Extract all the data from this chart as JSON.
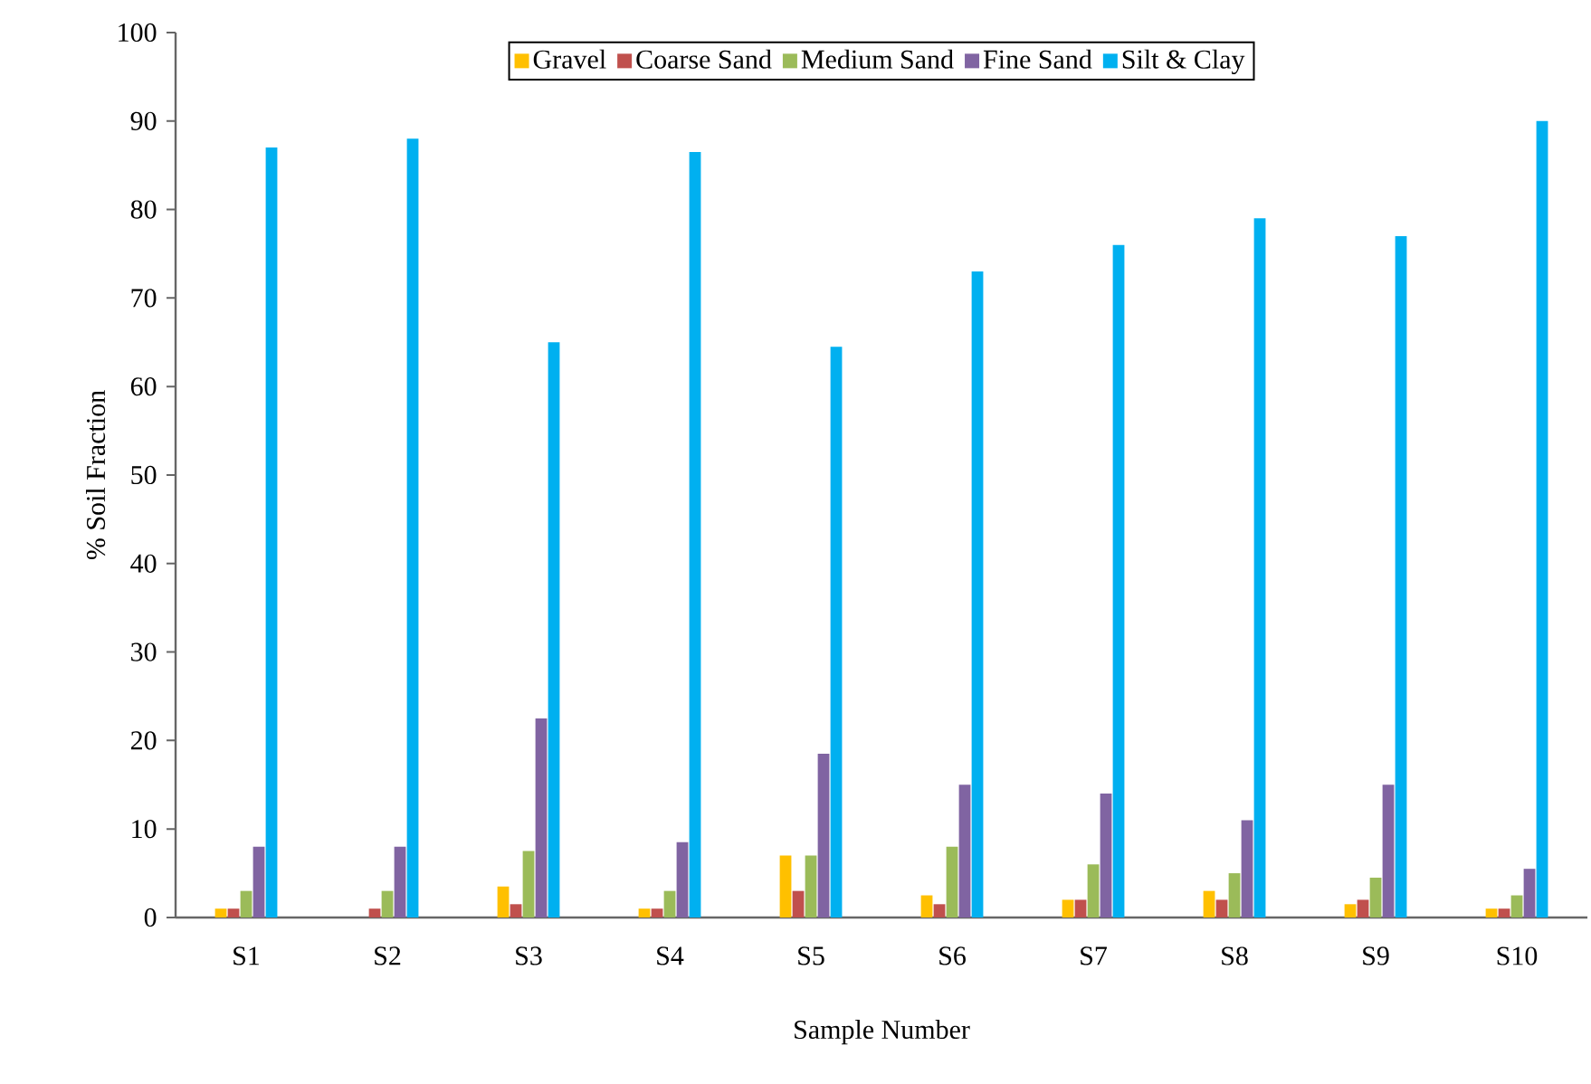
{
  "chart_data": {
    "type": "bar",
    "xlabel": "Sample Number",
    "ylabel": "% Soil Fraction",
    "categories": [
      "S1",
      "S2",
      "S3",
      "S4",
      "S5",
      "S6",
      "S7",
      "S8",
      "S9",
      "S10"
    ],
    "series": [
      {
        "name": "Gravel",
        "color": "#ffc000",
        "values": [
          1,
          0,
          3.5,
          1,
          7,
          2.5,
          2,
          3,
          1.5,
          1
        ]
      },
      {
        "name": "Coarse Sand",
        "color": "#c0504d",
        "values": [
          1,
          1,
          1.5,
          1,
          3,
          1.5,
          2,
          2,
          2,
          1
        ]
      },
      {
        "name": "Medium Sand",
        "color": "#9bbb59",
        "values": [
          3,
          3,
          7.5,
          3,
          7,
          8,
          6,
          5,
          4.5,
          2.5
        ]
      },
      {
        "name": "Fine Sand",
        "color": "#8064a2",
        "values": [
          8,
          8,
          22.5,
          8.5,
          18.5,
          15,
          14,
          11,
          15,
          5.5
        ]
      },
      {
        "name": "Silt & Clay",
        "color": "#00b0f0",
        "values": [
          87,
          88,
          65,
          86.5,
          64.5,
          73,
          76,
          79,
          77,
          90
        ]
      }
    ],
    "ylim": [
      0,
      100
    ],
    "yticks": [
      0,
      10,
      20,
      30,
      40,
      50,
      60,
      70,
      80,
      90,
      100
    ],
    "grid": false,
    "legend": "top"
  }
}
